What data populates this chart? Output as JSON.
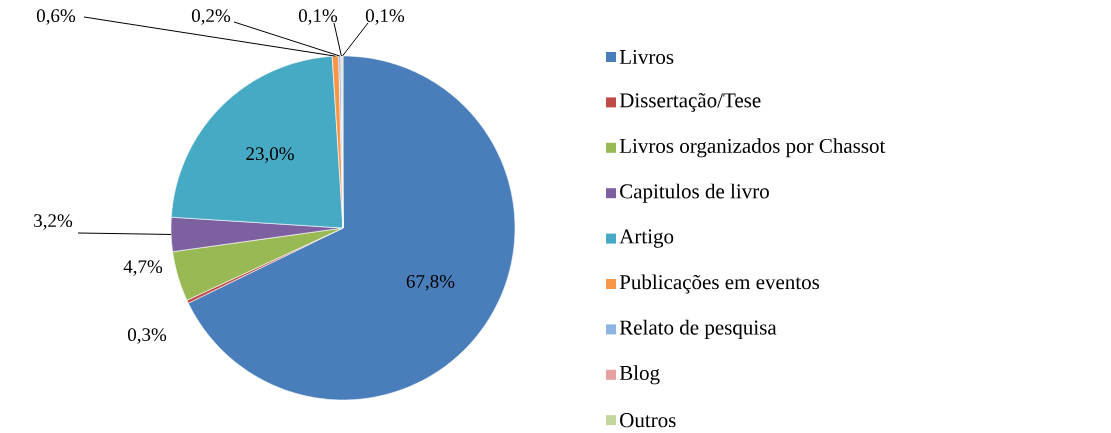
{
  "chart_data": {
    "type": "pie",
    "categories": [
      "Livros",
      "Dissertação/Tese",
      "Livros organizados por Chassot",
      "Capitulos de livro",
      "Artigo",
      "Publicações em eventos",
      "Relato de pesquisa",
      "Blog",
      "Outros"
    ],
    "values": [
      67.8,
      0.3,
      4.7,
      3.2,
      23.0,
      0.6,
      0.2,
      0.1,
      0.1
    ],
    "value_labels": [
      "67,8%",
      "0,3%",
      "4,7%",
      "3,2%",
      "23,0%",
      "0,6%",
      "0,2%",
      "0,1%",
      "0,1%"
    ],
    "colors": [
      "#4a7ebb",
      "#be4b48",
      "#98b954",
      "#7d60a0",
      "#46aac5",
      "#f79646",
      "#8eb4e3",
      "#e6a0a0",
      "#c3d69b"
    ],
    "legend": "right"
  }
}
